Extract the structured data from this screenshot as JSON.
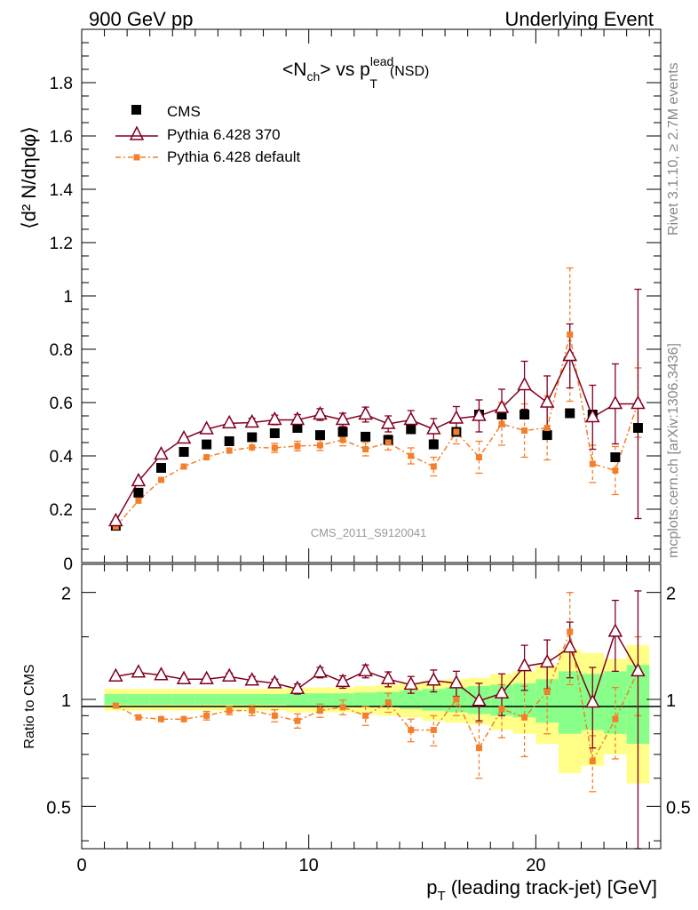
{
  "header": {
    "left": "900 GeV pp",
    "right": "Underlying Event",
    "side_top": "Rivet 3.1.10, ≥ 2.7M events",
    "side_bottom": "mcplots.cern.ch [arXiv:1306.3436]"
  },
  "colors": {
    "cms": "#000000",
    "pythia370": "#800020",
    "pythia_default": "#f47f2b",
    "band_yellow": "#ffff88",
    "band_green": "#88ff88",
    "watermark": "#999999"
  },
  "chart_data": [
    {
      "type": "scatter",
      "panel": "main",
      "title": "<N_ch> vs p_T^lead (NSD)",
      "title_main": "<N",
      "title_sub_ch": "ch",
      "title_mid": "> vs p",
      "title_sup_lead": "lead",
      "title_sub_T": "T",
      "title_end": "(NSD)",
      "ylabel": "⟨d² N/dηdφ⟩",
      "watermark": "CMS_2011_S9120041",
      "xlim": [
        0,
        25.5
      ],
      "ylim": [
        0,
        2.0
      ],
      "yticks": [
        0,
        0.2,
        0.4,
        0.6,
        0.8,
        1,
        1.2,
        1.4,
        1.6,
        1.8
      ],
      "ytick_labels": [
        "0",
        "0.2",
        "0.4",
        "0.6",
        "0.8",
        "1",
        "1.2",
        "1.4",
        "1.6",
        "1.8"
      ],
      "legend": [
        "CMS",
        "Pythia 6.428 370",
        "Pythia 6.428 default"
      ],
      "x": [
        1.5,
        2.5,
        3.5,
        4.5,
        5.5,
        6.5,
        7.5,
        8.5,
        9.5,
        10.5,
        11.5,
        12.5,
        13.5,
        14.5,
        15.5,
        16.5,
        17.5,
        18.5,
        19.5,
        20.5,
        21.5,
        22.5,
        23.5,
        24.5
      ],
      "series": [
        {
          "name": "CMS",
          "values": [
            0.138,
            0.262,
            0.355,
            0.415,
            0.443,
            0.455,
            0.47,
            0.485,
            0.505,
            0.478,
            0.49,
            0.472,
            0.46,
            0.5,
            0.443,
            0.49,
            0.555,
            0.555,
            0.555,
            0.478,
            0.56,
            0.555,
            0.395,
            0.505
          ],
          "errors": [
            0.005,
            0.005,
            0.005,
            0.006,
            0.006,
            0.006,
            0.007,
            0.008,
            0.008,
            0.009,
            0.01,
            0.011,
            0.012,
            0.013,
            0.015,
            0.018,
            0.02,
            0.022,
            0.025,
            0.03,
            0.035,
            0.04,
            0.05,
            0.06
          ]
        },
        {
          "name": "Pythia 6.428 370",
          "values": [
            0.155,
            0.305,
            0.405,
            0.465,
            0.5,
            0.522,
            0.525,
            0.535,
            0.535,
            0.555,
            0.535,
            0.555,
            0.52,
            0.535,
            0.5,
            0.54,
            0.55,
            0.58,
            0.665,
            0.6,
            0.775,
            0.545,
            0.595,
            0.595
          ],
          "errors": [
            0.006,
            0.008,
            0.009,
            0.01,
            0.012,
            0.014,
            0.016,
            0.018,
            0.02,
            0.022,
            0.025,
            0.028,
            0.03,
            0.035,
            0.04,
            0.045,
            0.06,
            0.07,
            0.09,
            0.1,
            0.12,
            0.12,
            0.15,
            0.43
          ]
        },
        {
          "name": "Pythia 6.428 default",
          "values": [
            0.135,
            0.232,
            0.31,
            0.36,
            0.395,
            0.42,
            0.432,
            0.43,
            0.437,
            0.44,
            0.46,
            0.425,
            0.45,
            0.4,
            0.36,
            0.49,
            0.395,
            0.52,
            0.495,
            0.505,
            0.855,
            0.37,
            0.345,
            0.6
          ],
          "errors": [
            0.005,
            0.007,
            0.008,
            0.01,
            0.012,
            0.013,
            0.015,
            0.017,
            0.018,
            0.02,
            0.022,
            0.025,
            0.028,
            0.03,
            0.035,
            0.045,
            0.06,
            0.08,
            0.1,
            0.12,
            0.25,
            0.07,
            0.09,
            0.13
          ]
        }
      ]
    },
    {
      "type": "scatter",
      "panel": "ratio",
      "ylabel": "Ratio to CMS",
      "xlabel": "p_T (leading track-jet) [GeV]",
      "xlabel_p": "p",
      "xlabel_sub": "T",
      "xlabel_rest": "(leading track-jet) [GeV]",
      "xlim": [
        0,
        25.5
      ],
      "ylim_log": [
        0.38,
        2.4
      ],
      "yticks": [
        0.5,
        1,
        2
      ],
      "ytick_labels": [
        "0.5",
        "1",
        "2"
      ],
      "xticks": [
        0,
        10,
        20
      ],
      "xtick_labels": [
        "0",
        "10",
        "20"
      ],
      "x": [
        1.5,
        2.5,
        3.5,
        4.5,
        5.5,
        6.5,
        7.5,
        8.5,
        9.5,
        10.5,
        11.5,
        12.5,
        13.5,
        14.5,
        15.5,
        16.5,
        17.5,
        18.5,
        19.5,
        20.5,
        21.5,
        22.5,
        23.5,
        24.5
      ],
      "band_yellow": [
        0.07,
        0.07,
        0.07,
        0.07,
        0.07,
        0.07,
        0.07,
        0.07,
        0.08,
        0.08,
        0.08,
        0.09,
        0.1,
        0.11,
        0.13,
        0.14,
        0.15,
        0.18,
        0.2,
        0.25,
        0.38,
        0.35,
        0.3,
        0.42
      ],
      "band_green": [
        0.035,
        0.035,
        0.035,
        0.035,
        0.035,
        0.035,
        0.035,
        0.035,
        0.04,
        0.04,
        0.04,
        0.045,
        0.05,
        0.06,
        0.07,
        0.08,
        0.09,
        0.1,
        0.11,
        0.14,
        0.2,
        0.18,
        0.2,
        0.25
      ],
      "series": [
        {
          "name": "Pythia 6.428 370",
          "values": [
            1.16,
            1.19,
            1.17,
            1.14,
            1.14,
            1.16,
            1.13,
            1.11,
            1.07,
            1.19,
            1.12,
            1.2,
            1.14,
            1.1,
            1.13,
            1.11,
            0.99,
            1.04,
            1.24,
            1.27,
            1.4,
            0.98,
            1.55,
            1.2
          ],
          "errors": [
            0.01,
            0.015,
            0.02,
            0.02,
            0.02,
            0.025,
            0.03,
            0.03,
            0.035,
            0.04,
            0.045,
            0.05,
            0.055,
            0.06,
            0.08,
            0.09,
            0.12,
            0.14,
            0.18,
            0.2,
            0.25,
            0.25,
            0.35,
            0.82
          ]
        },
        {
          "name": "Pythia 6.428 default",
          "values": [
            0.96,
            0.89,
            0.88,
            0.88,
            0.9,
            0.93,
            0.93,
            0.9,
            0.87,
            0.93,
            0.95,
            0.9,
            0.98,
            0.82,
            0.82,
            1.0,
            0.73,
            0.94,
            0.89,
            1.05,
            1.55,
            0.67,
            0.88,
            1.2
          ],
          "errors": [
            0.01,
            0.015,
            0.02,
            0.02,
            0.025,
            0.025,
            0.03,
            0.035,
            0.04,
            0.04,
            0.045,
            0.055,
            0.06,
            0.06,
            0.08,
            0.1,
            0.13,
            0.16,
            0.2,
            0.25,
            0.45,
            0.12,
            0.2,
            0.3
          ]
        }
      ]
    }
  ]
}
